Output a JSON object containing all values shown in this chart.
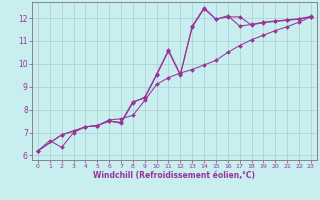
{
  "title": "",
  "xlabel": "Windchill (Refroidissement éolien,°C)",
  "ylabel": "",
  "bg_color": "#c8eef0",
  "grid_color": "#aacccc",
  "line_color": "#993399",
  "spine_color": "#777777",
  "xlim": [
    -0.5,
    23.5
  ],
  "ylim": [
    5.8,
    12.7
  ],
  "xticks": [
    0,
    1,
    2,
    3,
    4,
    5,
    6,
    7,
    8,
    9,
    10,
    11,
    12,
    13,
    14,
    15,
    16,
    17,
    18,
    19,
    20,
    21,
    22,
    23
  ],
  "yticks": [
    6,
    7,
    8,
    9,
    10,
    11,
    12
  ],
  "line1_x": [
    0,
    1,
    2,
    3,
    4,
    5,
    6,
    7,
    8,
    9,
    10,
    11,
    12,
    13,
    14,
    15,
    16,
    17,
    18,
    19,
    20,
    21,
    22,
    23
  ],
  "line1_y": [
    6.2,
    6.65,
    6.35,
    7.0,
    7.25,
    7.3,
    7.5,
    7.45,
    8.35,
    8.5,
    9.5,
    10.55,
    9.5,
    11.6,
    12.4,
    11.95,
    12.05,
    12.05,
    11.7,
    11.8,
    11.85,
    11.9,
    11.95,
    12.05
  ],
  "line2_x": [
    0,
    2,
    4,
    5,
    6,
    7,
    8,
    9,
    10,
    11,
    12,
    13,
    14,
    15,
    16,
    17,
    18,
    19,
    20,
    21,
    22,
    23
  ],
  "line2_y": [
    6.2,
    6.9,
    7.25,
    7.3,
    7.55,
    7.6,
    7.75,
    8.4,
    9.1,
    9.4,
    9.6,
    9.75,
    9.95,
    10.15,
    10.5,
    10.8,
    11.05,
    11.25,
    11.45,
    11.62,
    11.82,
    12.05
  ],
  "line3_x": [
    0,
    2,
    3,
    4,
    5,
    6,
    7,
    8,
    9,
    10,
    11,
    12,
    13,
    14,
    15,
    16,
    17,
    18,
    19,
    20,
    21,
    22,
    23
  ],
  "line3_y": [
    6.2,
    6.9,
    7.05,
    7.25,
    7.3,
    7.5,
    7.4,
    8.3,
    8.55,
    9.55,
    10.6,
    9.55,
    11.65,
    12.45,
    11.95,
    12.1,
    11.65,
    11.72,
    11.82,
    11.87,
    11.92,
    11.97,
    12.07
  ]
}
